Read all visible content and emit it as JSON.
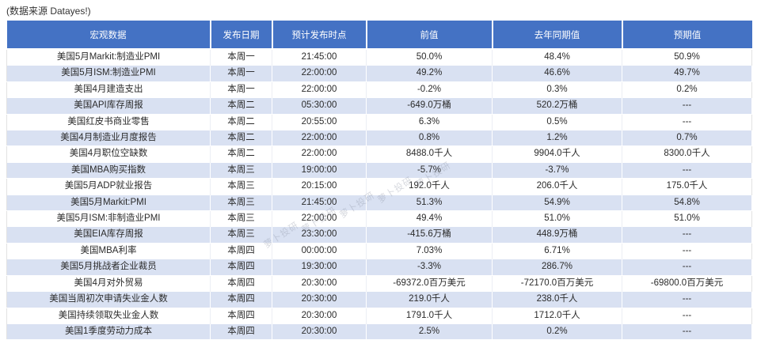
{
  "source_note": "(数据来源 Datayes!)",
  "watermark_text": "萝卜投研",
  "colors": {
    "header_bg": "#4472C4",
    "header_text": "#FFFFFF",
    "row_bg": "#FFFFFF",
    "row_alt_bg": "#D9E1F2",
    "body_text": "#2B2B2B"
  },
  "table": {
    "columns": [
      "宏观数据",
      "发布日期",
      "预计发布时点",
      "前值",
      "去年同期值",
      "预期值"
    ],
    "rows": [
      [
        "美国5月Markit:制造业PMI",
        "本周一",
        "21:45:00",
        "50.0%",
        "48.4%",
        "50.9%"
      ],
      [
        "美国5月ISM:制造业PMI",
        "本周一",
        "22:00:00",
        "49.2%",
        "46.6%",
        "49.7%"
      ],
      [
        "美国4月建造支出",
        "本周一",
        "22:00:00",
        "-0.2%",
        "0.3%",
        "0.2%"
      ],
      [
        "美国API库存周报",
        "本周二",
        "05:30:00",
        "-649.0万桶",
        "520.2万桶",
        "---"
      ],
      [
        "美国红皮书商业零售",
        "本周二",
        "20:55:00",
        "6.3%",
        "0.5%",
        "---"
      ],
      [
        "美国4月制造业月度报告",
        "本周二",
        "22:00:00",
        "0.8%",
        "1.2%",
        "0.7%"
      ],
      [
        "美国4月职位空缺数",
        "本周二",
        "22:00:00",
        "8488.0千人",
        "9904.0千人",
        "8300.0千人"
      ],
      [
        "美国MBA购买指数",
        "本周三",
        "19:00:00",
        "-5.7%",
        "-3.7%",
        "---"
      ],
      [
        "美国5月ADP就业报告",
        "本周三",
        "20:15:00",
        "192.0千人",
        "206.0千人",
        "175.0千人"
      ],
      [
        "美国5月Markit:PMI",
        "本周三",
        "21:45:00",
        "51.3%",
        "54.9%",
        "54.8%"
      ],
      [
        "美国5月ISM:非制造业PMI",
        "本周三",
        "22:00:00",
        "49.4%",
        "51.0%",
        "51.0%"
      ],
      [
        "美国EIA库存周报",
        "本周三",
        "23:30:00",
        "-415.6万桶",
        "448.9万桶",
        "---"
      ],
      [
        "美国MBA利率",
        "本周四",
        "00:00:00",
        "7.03%",
        "6.71%",
        "---"
      ],
      [
        "美国5月挑战者企业裁员",
        "本周四",
        "19:30:00",
        "-3.3%",
        "286.7%",
        "---"
      ],
      [
        "美国4月对外贸易",
        "本周四",
        "20:30:00",
        "-69372.0百万美元",
        "-72170.0百万美元",
        "-69800.0百万美元"
      ],
      [
        "美国当周初次申请失业金人数",
        "本周四",
        "20:30:00",
        "219.0千人",
        "238.0千人",
        "---"
      ],
      [
        "美国持续领取失业金人数",
        "本周四",
        "20:30:00",
        "1791.0千人",
        "1712.0千人",
        "---"
      ],
      [
        "美国1季度劳动力成本",
        "本周四",
        "20:30:00",
        "2.5%",
        "0.2%",
        "---"
      ]
    ]
  }
}
